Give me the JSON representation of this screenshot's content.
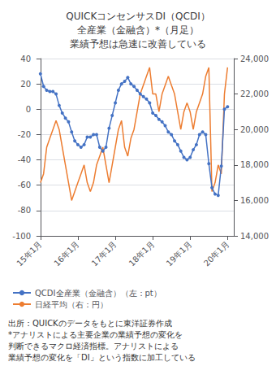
{
  "chart_data": {
    "type": "line",
    "title": "QUICKコンセンサスDI（QCDI）\n全産業（金融含）*（月足）\n業績予想は急速に改善している",
    "x": [
      0,
      1,
      2,
      3,
      4,
      5,
      6,
      7,
      8,
      9,
      10,
      11,
      12,
      13,
      14,
      15,
      16,
      17,
      18,
      19,
      20,
      21,
      22,
      23,
      24,
      25,
      26,
      27,
      28,
      29,
      30,
      31,
      32,
      33,
      34,
      35,
      36,
      37,
      38,
      39,
      40,
      41,
      42,
      43,
      44,
      45,
      46,
      47,
      48,
      49,
      50,
      51,
      52,
      53,
      54,
      55,
      56,
      57,
      58,
      59,
      60
    ],
    "xlim": [
      -1,
      62
    ],
    "xticks": [
      {
        "value": 0,
        "label": "15年1月"
      },
      {
        "value": 12,
        "label": "16年1月"
      },
      {
        "value": 24,
        "label": "17年1月"
      },
      {
        "value": 36,
        "label": "18年1月"
      },
      {
        "value": 48,
        "label": "19年1月"
      },
      {
        "value": 60,
        "label": "20年1月"
      }
    ],
    "ylim": [
      -100,
      40
    ],
    "yticks": [
      40,
      20,
      0,
      -20,
      -40,
      -60,
      -80,
      -100
    ],
    "y2lim": [
      14000,
      24000
    ],
    "y2ticks": [
      {
        "value": 24000,
        "label": "24,000"
      },
      {
        "value": 22000,
        "label": "22,000"
      },
      {
        "value": 20000,
        "label": "20,000"
      },
      {
        "value": 18000,
        "label": "18,000"
      },
      {
        "value": 16000,
        "label": "16,000"
      },
      {
        "value": 14000,
        "label": "14,000"
      }
    ],
    "grid": true,
    "legend": "bottom",
    "series": [
      {
        "name": "QCDI全産業（金融含）（左：pt）",
        "color": "#4472C4",
        "marker": "circle",
        "axis": "y",
        "values": [
          28,
          18,
          15,
          14,
          14,
          12,
          3,
          -3,
          -7,
          -10,
          -18,
          -25,
          -28,
          -30,
          -28,
          -22,
          -22,
          -20,
          -20,
          -30,
          -33,
          -30,
          -15,
          -5,
          5,
          15,
          20,
          22,
          25,
          20,
          18,
          15,
          12,
          10,
          8,
          5,
          -3,
          -5,
          -8,
          -10,
          -13,
          -18,
          -20,
          -25,
          -28,
          -33,
          -38,
          -40,
          -38,
          -32,
          -28,
          -20,
          -18,
          -20,
          -43,
          -62,
          -67,
          -68,
          -45,
          0,
          2
        ]
      },
      {
        "name": "日経平均（右：円）",
        "color": "#ED7D31",
        "axis": "y2",
        "values": [
          17000,
          17500,
          19000,
          19500,
          20000,
          20500,
          20000,
          19000,
          18000,
          17000,
          16000,
          16500,
          17000,
          17500,
          18000,
          17000,
          16500,
          17000,
          18000,
          18500,
          19000,
          18000,
          17000,
          18000,
          19000,
          20000,
          20500,
          19000,
          18500,
          19500,
          20000,
          21000,
          22000,
          22500,
          23000,
          23500,
          22000,
          22000,
          21000,
          22000,
          22500,
          23000,
          22500,
          22000,
          21000,
          20000,
          21000,
          21500,
          21000,
          20000,
          21000,
          21500,
          22000,
          23000,
          23500,
          16500,
          17000,
          18000,
          17500,
          22000,
          23500
        ]
      }
    ],
    "annotations": [
      "出所：QUICKのデータをもとに東洋証券作成",
      "*アナリストによる主要企業の業績予想の変化を",
      "判断できるマクロ経済指標。アナリストによる",
      "業績予想の変化を「DI」という指数に加工している"
    ]
  }
}
